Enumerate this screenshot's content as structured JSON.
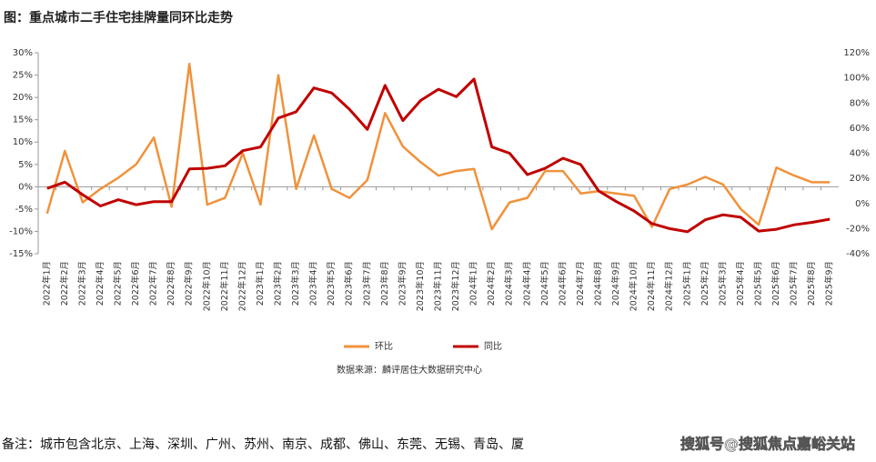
{
  "chart_data": {
    "type": "line",
    "title": "图：重点城市二手住宅挂牌量同环比走势",
    "source": "数据来源：麟评居住大数据研究中心",
    "note": "备注：城市包含北京、上海、深圳、广州、苏州、南京、成都、佛山、东莞、无锡、青岛、厦",
    "watermark": "搜狐号@搜狐焦点嘉峪关站",
    "categories": [
      "2022年1月",
      "2022年2月",
      "2022年3月",
      "2022年4月",
      "2022年5月",
      "2022年6月",
      "2022年7月",
      "2022年8月",
      "2022年9月",
      "2022年10月",
      "2022年11月",
      "2022年12月",
      "2023年1月",
      "2023年2月",
      "2023年3月",
      "2023年4月",
      "2023年5月",
      "2023年6月",
      "2023年7月",
      "2023年8月",
      "2023年9月",
      "2023年10月",
      "2023年11月",
      "2023年12月",
      "2024年1月",
      "2024年2月",
      "2024年3月",
      "2024年4月",
      "2024年5月",
      "2024年6月",
      "2024年7月",
      "2024年8月",
      "2024年9月",
      "2024年10月",
      "2024年11月",
      "2024年12月",
      "2025年1月",
      "2025年2月",
      "2025年3月",
      "2025年4月",
      "2025年5月",
      "2025年6月",
      "2025年7月",
      "2025年8月",
      "2025年9月"
    ],
    "series": [
      {
        "name": "环比",
        "color": "#F0923C",
        "axis": "y",
        "values": [
          -6,
          8,
          -3.5,
          -0.5,
          2,
          5,
          11,
          -4.5,
          27.5,
          -4,
          -2.5,
          7.5,
          -4,
          25,
          -0.5,
          11.5,
          -0.5,
          -2.5,
          1.5,
          16.5,
          9,
          5.5,
          2.5,
          3.5,
          4,
          -9.5,
          -3.5,
          -2.5,
          3.5,
          3.5,
          -1.5,
          -1,
          -1.5,
          -2,
          -9,
          -0.5,
          0.5,
          2.2,
          0.5,
          -5,
          -8.5,
          4.3,
          2.5,
          1,
          1
        ]
      },
      {
        "name": "同比",
        "color": "#C00000",
        "axis": "y2",
        "values": [
          12,
          17,
          7,
          -2,
          3,
          -1,
          1.5,
          1.5,
          27.5,
          28,
          30,
          42,
          45,
          68,
          73,
          92,
          88,
          75,
          59,
          94,
          66,
          82,
          91,
          85,
          99,
          45,
          40,
          23,
          28,
          36,
          31,
          10,
          1.5,
          -6,
          -16,
          -20,
          -22.5,
          -13,
          -9,
          -11,
          -22,
          -20.5,
          -17,
          -15,
          -12.5
        ]
      }
    ],
    "ylim": [
      -15,
      30
    ],
    "yticks": [
      {
        "value": -15,
        "label": "-15%"
      },
      {
        "value": -10,
        "label": "-10%"
      },
      {
        "value": -5,
        "label": "-5%"
      },
      {
        "value": 0,
        "label": "0%"
      },
      {
        "value": 5,
        "label": "5%"
      },
      {
        "value": 10,
        "label": "10%"
      },
      {
        "value": 15,
        "label": "15%"
      },
      {
        "value": 20,
        "label": "20%"
      },
      {
        "value": 25,
        "label": "25%"
      },
      {
        "value": 30,
        "label": "30%"
      }
    ],
    "y2lim": [
      -40,
      120
    ],
    "y2ticks": [
      {
        "value": -40,
        "label": "-40%"
      },
      {
        "value": -20,
        "label": "-20%"
      },
      {
        "value": 0,
        "label": "0%"
      },
      {
        "value": 20,
        "label": "20%"
      },
      {
        "value": 40,
        "label": "40%"
      },
      {
        "value": 60,
        "label": "60%"
      },
      {
        "value": 80,
        "label": "80%"
      },
      {
        "value": 100,
        "label": "100%"
      },
      {
        "value": 120,
        "label": "120%"
      }
    ],
    "legend": "bottom"
  }
}
